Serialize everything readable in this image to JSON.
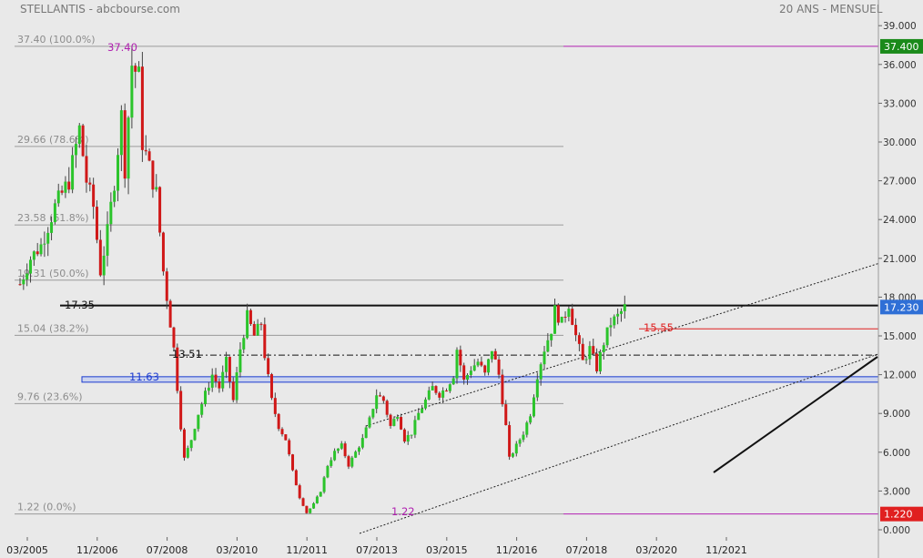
{
  "header": {
    "title": "STELLANTIS - abcbourse.com",
    "period": "20 ANS - MENSUEL"
  },
  "chart_data": {
    "type": "candlestick",
    "title": "",
    "xlabel": "",
    "ylabel": "",
    "ylim": [
      0,
      40
    ],
    "grid": false,
    "price_axis": {
      "ticks": [
        "39.000",
        "36.000",
        "33.000",
        "30.000",
        "27.000",
        "24.000",
        "21.000",
        "18.000",
        "15.000",
        "12.000",
        "9.000",
        "6.000",
        "3.000",
        "0.000"
      ],
      "tick_values": [
        39,
        36,
        33,
        30,
        27,
        24,
        21,
        18,
        15,
        12,
        9,
        6,
        3,
        0
      ]
    },
    "time_axis": {
      "labels": [
        "03/2005",
        "11/2006",
        "07/2008",
        "03/2010",
        "11/2011",
        "07/2013",
        "03/2015",
        "11/2016",
        "07/2018",
        "03/2020",
        "11/2021"
      ],
      "months": [
        0,
        20,
        40,
        60,
        80,
        100,
        120,
        140,
        160,
        180,
        200
      ]
    },
    "badges": [
      {
        "label": "37.400",
        "value": 37.4,
        "color": "#1a8a1a"
      },
      {
        "label": "17.230",
        "value": 17.23,
        "color": "#2f6fd6"
      },
      {
        "label": "1.220",
        "value": 1.22,
        "color": "#e02020"
      }
    ],
    "fibonacci": [
      {
        "label": "37.40  (100.0%)",
        "value": 37.4
      },
      {
        "label": "29.66  (78.6%)",
        "value": 29.66
      },
      {
        "label": "23.58  (61.8%)",
        "value": 23.58
      },
      {
        "label": "19.31  (50.0%)",
        "value": 19.31
      },
      {
        "label": "15.04  (38.2%)",
        "value": 15.04
      },
      {
        "label": "9.76  (23.6%)",
        "value": 9.76
      },
      {
        "label": "1.22  (0.0%)",
        "value": 1.22
      }
    ],
    "annotations": [
      {
        "label": "37.40",
        "value": 37.4,
        "color": "#b020b0"
      },
      {
        "label": "1.22",
        "value": 1.22,
        "color": "#b020b0"
      },
      {
        "label": "17.35",
        "value": 17.35,
        "color": "#111111"
      },
      {
        "label": "15.55",
        "value": 15.55,
        "color": "#e02020"
      },
      {
        "label": "13.51",
        "value": 13.51,
        "color": "#111111"
      },
      {
        "label": "11.63",
        "value": 11.63,
        "color": "#1a3ad0"
      }
    ],
    "colors": {
      "up": "#2bc42b",
      "down": "#d01818",
      "background": "#e9e9e9"
    },
    "anchors": [
      [
        0,
        19
      ],
      [
        3,
        21
      ],
      [
        6,
        22
      ],
      [
        10,
        25
      ],
      [
        14,
        27
      ],
      [
        17,
        31
      ],
      [
        19,
        27
      ],
      [
        21,
        25
      ],
      [
        23,
        20
      ],
      [
        25,
        23
      ],
      [
        27,
        27
      ],
      [
        29,
        32
      ],
      [
        30,
        28
      ],
      [
        32,
        36
      ],
      [
        34,
        35
      ],
      [
        35,
        30
      ],
      [
        37,
        28
      ],
      [
        39,
        26
      ],
      [
        41,
        20
      ],
      [
        43,
        16
      ],
      [
        44,
        14
      ],
      [
        45,
        11
      ],
      [
        46,
        8
      ],
      [
        47,
        5.5
      ],
      [
        49,
        7
      ],
      [
        51,
        9
      ],
      [
        53,
        10.5
      ],
      [
        55,
        12
      ],
      [
        57,
        11
      ],
      [
        59,
        13
      ],
      [
        61,
        10
      ],
      [
        63,
        14
      ],
      [
        65,
        16.5
      ],
      [
        67,
        15
      ],
      [
        69,
        16
      ],
      [
        70,
        13.5
      ],
      [
        72,
        10
      ],
      [
        74,
        8
      ],
      [
        76,
        7
      ],
      [
        78,
        4.5
      ],
      [
        80,
        2.5
      ],
      [
        82,
        1.3
      ],
      [
        84,
        2
      ],
      [
        86,
        3
      ],
      [
        88,
        5
      ],
      [
        90,
        6
      ],
      [
        92,
        6.5
      ],
      [
        94,
        5
      ],
      [
        96,
        6
      ],
      [
        98,
        7
      ],
      [
        100,
        8.5
      ],
      [
        102,
        10.5
      ],
      [
        104,
        10
      ],
      [
        106,
        8
      ],
      [
        108,
        9
      ],
      [
        110,
        7
      ],
      [
        112,
        7.5
      ],
      [
        114,
        9
      ],
      [
        116,
        10
      ],
      [
        118,
        11
      ],
      [
        120,
        10.5
      ],
      [
        122,
        11
      ],
      [
        124,
        12
      ],
      [
        125,
        14
      ],
      [
        127,
        11.5
      ],
      [
        129,
        12.5
      ],
      [
        131,
        13
      ],
      [
        133,
        12
      ],
      [
        135,
        14
      ],
      [
        137,
        12
      ],
      [
        139,
        8
      ],
      [
        140,
        5.5
      ],
      [
        142,
        6.5
      ],
      [
        144,
        7.5
      ],
      [
        146,
        9
      ],
      [
        148,
        12
      ],
      [
        150,
        14
      ],
      [
        152,
        15.5
      ],
      [
        153,
        17
      ],
      [
        155,
        16
      ],
      [
        157,
        17.5
      ],
      [
        159,
        15
      ],
      [
        161,
        13
      ],
      [
        163,
        14
      ],
      [
        165,
        12.5
      ],
      [
        167,
        14.5
      ],
      [
        169,
        16
      ],
      [
        171,
        16.5
      ],
      [
        173,
        17.2
      ]
    ]
  }
}
